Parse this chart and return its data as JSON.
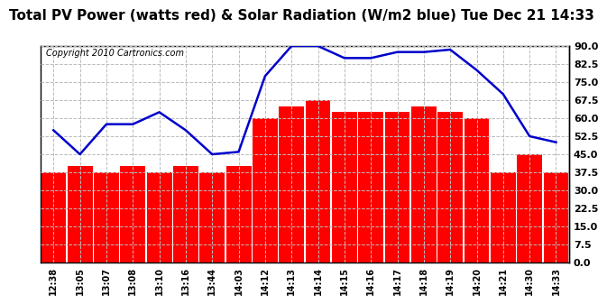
{
  "title": "Total PV Power (watts red) & Solar Radiation (W/m2 blue) Tue Dec 21 14:33",
  "copyright": "Copyright 2010 Cartronics.com",
  "x_labels": [
    "12:38",
    "13:05",
    "13:07",
    "13:08",
    "13:10",
    "13:16",
    "13:44",
    "14:03",
    "14:12",
    "14:13",
    "14:14",
    "14:15",
    "14:16",
    "14:17",
    "14:18",
    "14:19",
    "14:20",
    "14:21",
    "14:30",
    "14:33"
  ],
  "bar_values": [
    37.5,
    40.0,
    37.5,
    40.0,
    37.5,
    40.0,
    37.5,
    40.0,
    60.0,
    65.0,
    67.5,
    62.5,
    62.5,
    62.5,
    65.0,
    62.5,
    60.0,
    37.5,
    45.0,
    37.5
  ],
  "line_values": [
    55.0,
    45.0,
    57.5,
    57.5,
    62.5,
    55.0,
    45.0,
    46.0,
    77.5,
    90.0,
    90.0,
    85.0,
    85.0,
    87.5,
    87.5,
    88.5,
    80.0,
    70.0,
    52.5,
    50.0
  ],
  "bar_color": "#ff0000",
  "line_color": "#0000cc",
  "bg_color": "#ffffff",
  "plot_bg_color": "#ffffff",
  "grid_color": "#bbbbbb",
  "ymin": 0.0,
  "ymax": 90.0,
  "yticks": [
    0.0,
    7.5,
    15.0,
    22.5,
    30.0,
    37.5,
    45.0,
    52.5,
    60.0,
    67.5,
    75.0,
    82.5,
    90.0
  ],
  "title_fontsize": 11,
  "copyright_fontsize": 7,
  "tick_fontsize": 8,
  "xlabel_fontsize": 7
}
